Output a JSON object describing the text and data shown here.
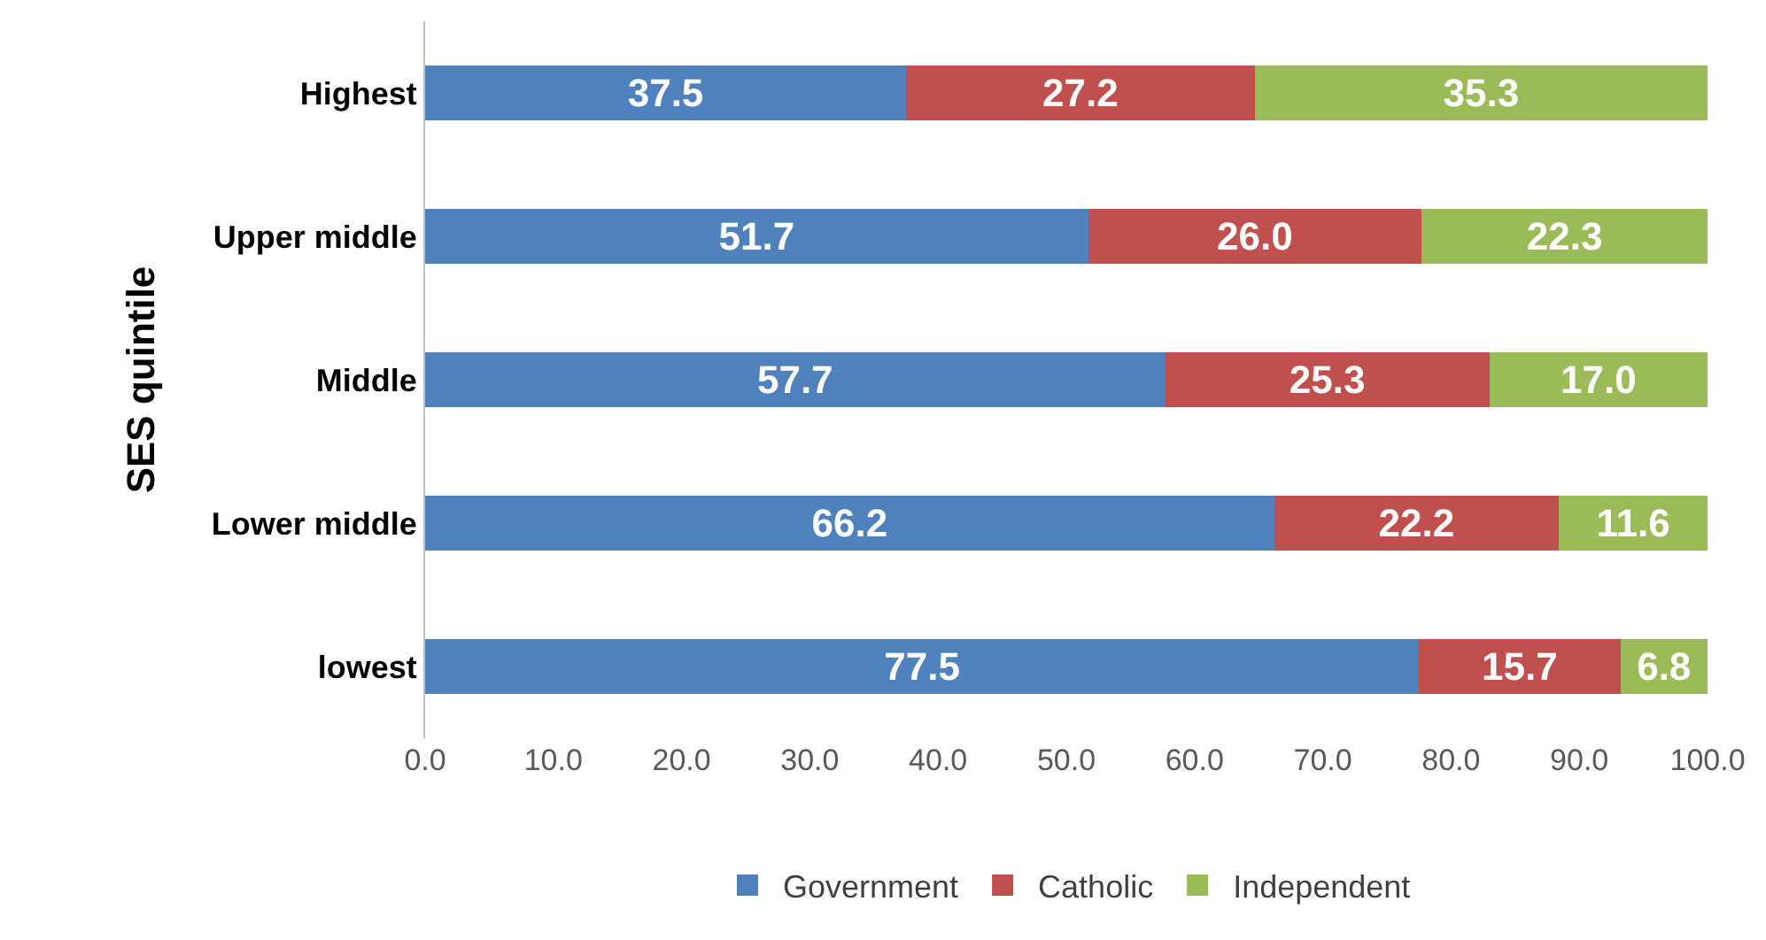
{
  "chart_data": {
    "type": "bar",
    "orientation": "horizontal",
    "stacked": true,
    "ylabel": "SES quintile",
    "categories": [
      "Highest",
      "Upper middle",
      "Middle",
      "Lower middle",
      "lowest"
    ],
    "series": [
      {
        "name": "Government",
        "color": "#4f81bd",
        "values": [
          37.5,
          51.7,
          57.7,
          66.2,
          77.5
        ],
        "value_labels": [
          "37.5",
          "51.7",
          "57.7",
          "66.2",
          "77.5"
        ]
      },
      {
        "name": "Catholic",
        "color": "#c0504d",
        "values": [
          27.2,
          26.0,
          25.3,
          22.2,
          15.7
        ],
        "value_labels": [
          "27.2",
          "26.0",
          "25.3",
          "22.2",
          "15.7"
        ]
      },
      {
        "name": "Independent",
        "color": "#9bbb59",
        "values": [
          35.3,
          22.3,
          17.0,
          11.6,
          6.8
        ],
        "value_labels": [
          "35.3",
          "22.3",
          "17.0",
          "11.6",
          "6.8"
        ]
      }
    ],
    "xlim": [
      0,
      100
    ],
    "xticks": [
      {
        "value": 0,
        "label": "0.0"
      },
      {
        "value": 10,
        "label": "10.0"
      },
      {
        "value": 20,
        "label": "20.0"
      },
      {
        "value": 30,
        "label": "30.0"
      },
      {
        "value": 40,
        "label": "40.0"
      },
      {
        "value": 50,
        "label": "50.0"
      },
      {
        "value": 60,
        "label": "60.0"
      },
      {
        "value": 70,
        "label": "70.0"
      },
      {
        "value": 80,
        "label": "80.0"
      },
      {
        "value": 90,
        "label": "90.0"
      },
      {
        "value": 100,
        "label": "100.0"
      }
    ],
    "legend": "bottom"
  }
}
